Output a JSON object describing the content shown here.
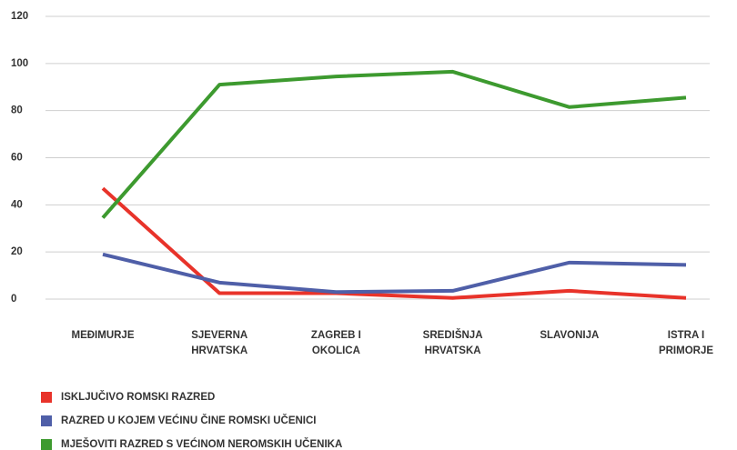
{
  "chart_data": {
    "type": "line",
    "categories": [
      "MEĐIMURJE",
      "SJEVERNA HRVATSKA",
      "ZAGREB I OKOLICA",
      "SREDIŠNJA HRVATSKA",
      "SLAVONIJA",
      "ISTRA I PRIMORJE"
    ],
    "series": [
      {
        "name": "ISKLJUČIVO ROMSKI RAZRED",
        "color": "#e8332a",
        "values": [
          47,
          2.5,
          2.5,
          0.5,
          3.5,
          0.5
        ]
      },
      {
        "name": "RAZRED U KOJEM VEĆINU ČINE ROMSKI UČENICI",
        "color": "#4f5fa8",
        "values": [
          19,
          7,
          3,
          3.5,
          15.5,
          14.5
        ]
      },
      {
        "name": "MJEŠOVITI RAZRED S VEĆINOM NEROMSKIH UČENIKA",
        "color": "#3d9a2f",
        "values": [
          34.5,
          91,
          94.5,
          96.5,
          81.5,
          85.5
        ]
      }
    ],
    "ylim": [
      0,
      120
    ],
    "yticks": [
      0,
      20,
      40,
      60,
      80,
      100,
      120
    ],
    "grid": true,
    "legend": "bottom-left"
  }
}
